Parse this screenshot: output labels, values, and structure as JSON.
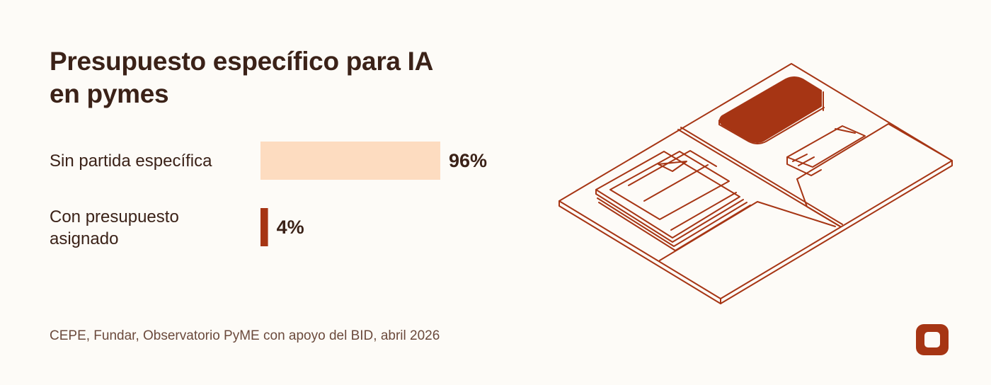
{
  "title_lines": [
    "Presupuesto específico para IA",
    "en pymes"
  ],
  "source": "CEPE, Fundar, Observatorio PyME con apoyo del BID, abril 2026",
  "colors": {
    "background": "#fdfbf7",
    "text": "#3b2218",
    "accent": "#a63514",
    "bar_light": "#fddcc0"
  },
  "icons": [
    "folder-illustration-icon",
    "logo-icon"
  ],
  "chart_data": {
    "type": "bar",
    "orientation": "horizontal",
    "categories": [
      [
        "Sin partida específica"
      ],
      [
        "Con presupuesto",
        "asignado"
      ]
    ],
    "values": [
      96,
      4
    ],
    "value_labels": [
      "96%",
      "4%"
    ],
    "bar_colors": [
      "#fddcc0",
      "#a63514"
    ],
    "xlim": [
      0,
      100
    ],
    "grid": false,
    "legend": "none"
  }
}
